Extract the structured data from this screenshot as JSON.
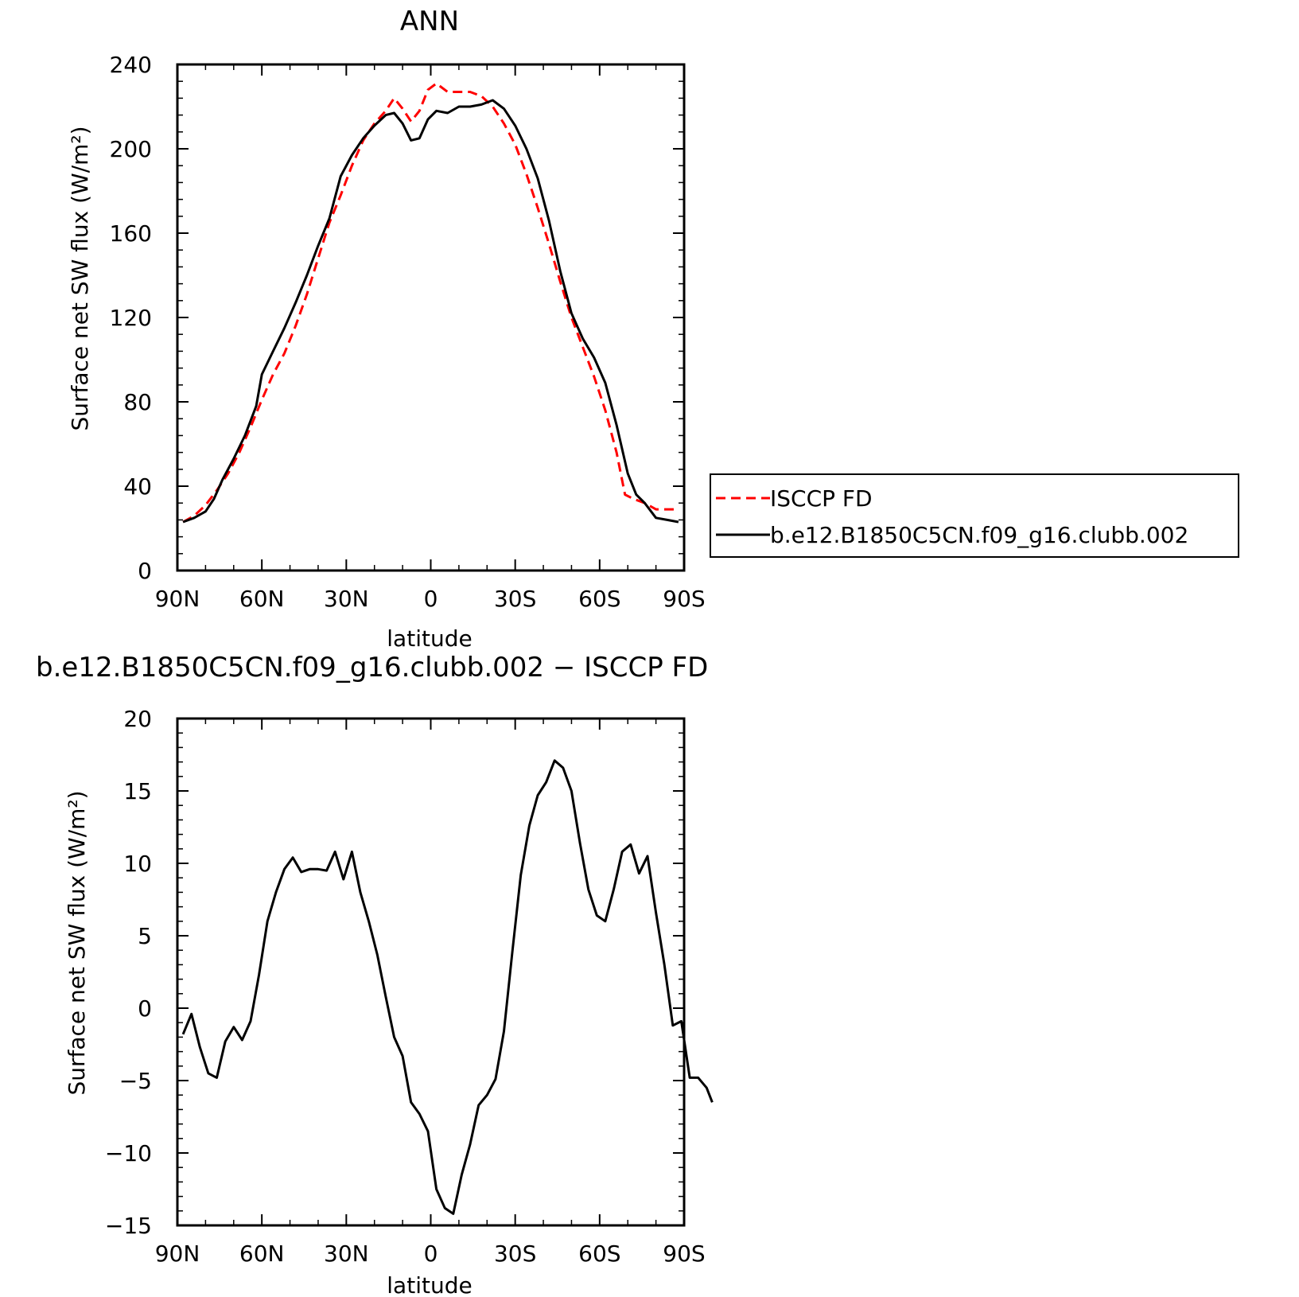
{
  "chart_data": [
    {
      "type": "line",
      "title": "ANN",
      "xlabel": "latitude",
      "ylabel": "Surface net SW flux (W/m²)",
      "xlim": [
        90,
        -90
      ],
      "ylim": [
        0,
        240
      ],
      "xticks": [
        90,
        60,
        30,
        0,
        -30,
        -60,
        -90
      ],
      "xtick_labels": [
        "90N",
        "60N",
        "30N",
        "0",
        "30S",
        "60S",
        "90S"
      ],
      "yticks": [
        0,
        40,
        80,
        120,
        160,
        200,
        240
      ],
      "ytick_labels": [
        "0",
        "40",
        "80",
        "120",
        "160",
        "200",
        "240"
      ],
      "grid": false,
      "legend_position": "right",
      "series": [
        {
          "name": "ISCCP FD",
          "color": "#ff0000",
          "dash": "dashed",
          "points": [
            [
              88,
              23
            ],
            [
              84,
              26
            ],
            [
              80,
              31
            ],
            [
              76,
              38
            ],
            [
              72,
              46
            ],
            [
              68,
              56
            ],
            [
              64,
              68
            ],
            [
              60,
              81
            ],
            [
              56,
              93
            ],
            [
              52,
              103
            ],
            [
              48,
              116
            ],
            [
              44,
              131
            ],
            [
              40,
              148
            ],
            [
              36,
              165
            ],
            [
              32,
              178
            ],
            [
              28,
              192
            ],
            [
              24,
              204
            ],
            [
              20,
              212
            ],
            [
              16,
              218
            ],
            [
              13,
              224
            ],
            [
              10,
              219
            ],
            [
              7,
              213
            ],
            [
              4,
              218
            ],
            [
              1,
              228
            ],
            [
              -2,
              231
            ],
            [
              -6,
              227
            ],
            [
              -10,
              227
            ],
            [
              -14,
              227
            ],
            [
              -18,
              225
            ],
            [
              -22,
              220
            ],
            [
              -26,
              212
            ],
            [
              -30,
              202
            ],
            [
              -34,
              188
            ],
            [
              -38,
              172
            ],
            [
              -42,
              155
            ],
            [
              -46,
              137
            ],
            [
              -50,
              120
            ],
            [
              -54,
              106
            ],
            [
              -58,
              92
            ],
            [
              -62,
              76
            ],
            [
              -66,
              56
            ],
            [
              -69,
              36
            ],
            [
              -72,
              34
            ],
            [
              -76,
              32
            ],
            [
              -80,
              29
            ],
            [
              -84,
              29
            ],
            [
              -88,
              29
            ]
          ]
        },
        {
          "name": "b.e12.B1850C5CN.f09_g16.clubb.002",
          "color": "#000000",
          "dash": "solid",
          "points": [
            [
              88,
              23
            ],
            [
              84,
              25
            ],
            [
              80,
              28
            ],
            [
              77,
              34
            ],
            [
              74,
              43
            ],
            [
              70,
              53
            ],
            [
              66,
              64
            ],
            [
              62,
              78
            ],
            [
              60,
              93
            ],
            [
              56,
              104
            ],
            [
              52,
              115
            ],
            [
              48,
              127
            ],
            [
              44,
              140
            ],
            [
              40,
              154
            ],
            [
              36,
              167
            ],
            [
              32,
              187
            ],
            [
              28,
              197
            ],
            [
              24,
              205
            ],
            [
              20,
              211
            ],
            [
              16,
              216
            ],
            [
              13,
              217
            ],
            [
              10,
              212
            ],
            [
              7,
              204
            ],
            [
              4,
              205
            ],
            [
              1,
              214
            ],
            [
              -2,
              218
            ],
            [
              -6,
              217
            ],
            [
              -10,
              220
            ],
            [
              -14,
              220
            ],
            [
              -18,
              221
            ],
            [
              -22,
              223
            ],
            [
              -26,
              219
            ],
            [
              -30,
              211
            ],
            [
              -34,
              200
            ],
            [
              -38,
              186
            ],
            [
              -42,
              166
            ],
            [
              -46,
              142
            ],
            [
              -50,
              122
            ],
            [
              -54,
              110
            ],
            [
              -58,
              101
            ],
            [
              -62,
              89
            ],
            [
              -66,
              69
            ],
            [
              -70,
              46
            ],
            [
              -73,
              36
            ],
            [
              -76,
              32
            ],
            [
              -80,
              25
            ],
            [
              -84,
              24
            ],
            [
              -88,
              23
            ]
          ]
        }
      ]
    },
    {
      "type": "line",
      "title": "b.e12.B1850C5CN.f09_g16.clubb.002 − ISCCP FD",
      "xlabel": "latitude",
      "ylabel": "Surface net SW flux (W/m²)",
      "xlim": [
        90,
        -90
      ],
      "ylim": [
        -15,
        20
      ],
      "xticks": [
        90,
        60,
        30,
        0,
        -30,
        -60,
        -90
      ],
      "xtick_labels": [
        "90N",
        "60N",
        "30N",
        "0",
        "30S",
        "60S",
        "90S"
      ],
      "yticks": [
        -15,
        -10,
        -5,
        0,
        5,
        10,
        15,
        20
      ],
      "ytick_labels": [
        "−15",
        "−10",
        "−5",
        "0",
        "5",
        "10",
        "15",
        "20"
      ],
      "grid": false,
      "series": [
        {
          "color": "#000000",
          "dash": "solid",
          "points": [
            [
              88,
              -1.8
            ],
            [
              85,
              -0.4
            ],
            [
              82,
              -2.7
            ],
            [
              79,
              -4.5
            ],
            [
              76,
              -4.8
            ],
            [
              73,
              -2.3
            ],
            [
              70,
              -1.3
            ],
            [
              67,
              -2.2
            ],
            [
              64,
              -0.9
            ],
            [
              61,
              2.3
            ],
            [
              58,
              6.0
            ],
            [
              55,
              8.0
            ],
            [
              52,
              9.6
            ],
            [
              49,
              10.4
            ],
            [
              46,
              9.4
            ],
            [
              43,
              9.6
            ],
            [
              40,
              9.6
            ],
            [
              37,
              9.5
            ],
            [
              34,
              10.8
            ],
            [
              31,
              8.9
            ],
            [
              28,
              10.8
            ],
            [
              25,
              8.0
            ],
            [
              22,
              6.0
            ],
            [
              19,
              3.7
            ],
            [
              16,
              0.8
            ],
            [
              13,
              -2.0
            ],
            [
              10,
              -3.3
            ],
            [
              7,
              -6.5
            ],
            [
              4,
              -7.3
            ],
            [
              1,
              -8.5
            ],
            [
              -2,
              -12.5
            ],
            [
              -5,
              -13.8
            ],
            [
              -8,
              -14.2
            ],
            [
              -11,
              -11.5
            ],
            [
              -14,
              -9.4
            ],
            [
              -17,
              -6.7
            ],
            [
              -20,
              -6.0
            ],
            [
              -23,
              -4.9
            ],
            [
              -26,
              -1.6
            ],
            [
              -29,
              3.9
            ],
            [
              -32,
              9.2
            ],
            [
              -35,
              12.6
            ],
            [
              -38,
              14.7
            ],
            [
              -41,
              15.6
            ],
            [
              -44,
              17.1
            ],
            [
              -47,
              16.6
            ],
            [
              -50,
              15.0
            ],
            [
              -53,
              11.4
            ],
            [
              -56,
              8.2
            ],
            [
              -59,
              6.4
            ],
            [
              -62,
              6.0
            ],
            [
              -65,
              8.2
            ],
            [
              -68,
              10.8
            ],
            [
              -71,
              11.3
            ],
            [
              -74,
              9.3
            ],
            [
              -77,
              10.5
            ],
            [
              -80,
              6.6
            ],
            [
              -83,
              3.0
            ],
            [
              -86,
              -1.2
            ],
            [
              -89,
              -0.9
            ],
            [
              -92,
              -4.8
            ],
            [
              -95,
              -4.8
            ],
            [
              -98,
              -5.5
            ],
            [
              -100,
              -6.5
            ]
          ]
        }
      ]
    }
  ]
}
